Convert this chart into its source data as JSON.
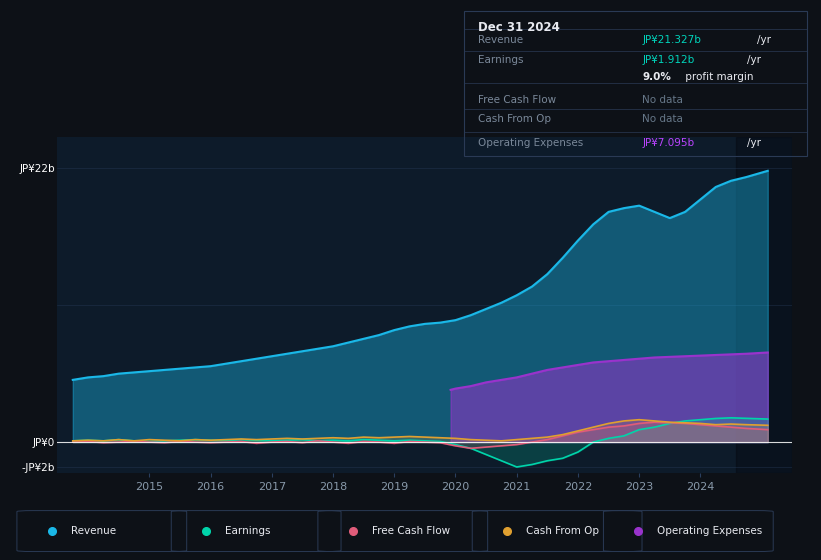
{
  "bg_color": "#0d1117",
  "plot_bg_color": "#0d1b2a",
  "grid_color": "#2a3f5f",
  "text_color": "#ffffff",
  "label_color": "#8899aa",
  "ylim": [
    -2.5,
    24.5
  ],
  "xlim_start": 2013.5,
  "xlim_end": 2025.5,
  "xtick_years": [
    2015,
    2016,
    2017,
    2018,
    2019,
    2020,
    2021,
    2022,
    2023,
    2024
  ],
  "revenue_color": "#1ab8e8",
  "earnings_color": "#00d4aa",
  "fcf_color": "#e05c7a",
  "cashfromop_color": "#e0a030",
  "opex_color": "#9933cc",
  "info_box": {
    "date": "Dec 31 2024",
    "revenue_label": "Revenue",
    "revenue_value": "JP¥21.327b",
    "earnings_label": "Earnings",
    "earnings_value": "JP¥1.912b",
    "margin_pct": "9.0%",
    "margin_text": " profit margin",
    "fcf_label": "Free Cash Flow",
    "fcf_value": "No data",
    "cashop_label": "Cash From Op",
    "cashop_value": "No data",
    "opex_label": "Operating Expenses",
    "opex_value": "JP¥7.095b"
  },
  "legend": [
    {
      "label": "Revenue",
      "color": "#1ab8e8"
    },
    {
      "label": "Earnings",
      "color": "#00d4aa"
    },
    {
      "label": "Free Cash Flow",
      "color": "#e05c7a"
    },
    {
      "label": "Cash From Op",
      "color": "#e0a030"
    },
    {
      "label": "Operating Expenses",
      "color": "#9933cc"
    }
  ],
  "revenue": {
    "x": [
      2013.75,
      2014.0,
      2014.25,
      2014.5,
      2014.75,
      2015.0,
      2015.25,
      2015.5,
      2015.75,
      2016.0,
      2016.25,
      2016.5,
      2016.75,
      2017.0,
      2017.25,
      2017.5,
      2017.75,
      2018.0,
      2018.25,
      2018.5,
      2018.75,
      2019.0,
      2019.25,
      2019.5,
      2019.75,
      2020.0,
      2020.25,
      2020.5,
      2020.75,
      2021.0,
      2021.25,
      2021.5,
      2021.75,
      2022.0,
      2022.25,
      2022.5,
      2022.75,
      2023.0,
      2023.25,
      2023.5,
      2023.75,
      2024.0,
      2024.25,
      2024.5,
      2024.75,
      2025.1
    ],
    "y": [
      5.0,
      5.2,
      5.3,
      5.5,
      5.6,
      5.7,
      5.8,
      5.9,
      6.0,
      6.1,
      6.3,
      6.5,
      6.7,
      6.9,
      7.1,
      7.3,
      7.5,
      7.7,
      8.0,
      8.3,
      8.6,
      9.0,
      9.3,
      9.5,
      9.6,
      9.8,
      10.2,
      10.7,
      11.2,
      11.8,
      12.5,
      13.5,
      14.8,
      16.2,
      17.5,
      18.5,
      18.8,
      19.0,
      18.5,
      18.0,
      18.5,
      19.5,
      20.5,
      21.0,
      21.3,
      21.8
    ]
  },
  "earnings": {
    "x": [
      2013.75,
      2014.0,
      2014.25,
      2014.5,
      2014.75,
      2015.0,
      2015.25,
      2015.5,
      2015.75,
      2016.0,
      2016.25,
      2016.5,
      2016.75,
      2017.0,
      2017.25,
      2017.5,
      2017.75,
      2018.0,
      2018.25,
      2018.5,
      2018.75,
      2019.0,
      2019.25,
      2019.5,
      2019.75,
      2020.0,
      2020.25,
      2020.5,
      2020.75,
      2021.0,
      2021.25,
      2021.5,
      2021.75,
      2022.0,
      2022.25,
      2022.5,
      2022.75,
      2023.0,
      2023.25,
      2023.5,
      2023.75,
      2024.0,
      2024.25,
      2024.5,
      2024.75,
      2025.1
    ],
    "y": [
      0.1,
      0.15,
      0.1,
      0.2,
      0.1,
      0.05,
      0.1,
      0.15,
      0.2,
      0.15,
      0.1,
      0.2,
      0.15,
      0.1,
      0.15,
      0.2,
      0.1,
      0.15,
      0.1,
      0.2,
      0.15,
      0.1,
      0.15,
      0.1,
      0.05,
      -0.2,
      -0.5,
      -1.0,
      -1.5,
      -2.0,
      -1.8,
      -1.5,
      -1.3,
      -0.8,
      0.0,
      0.3,
      0.5,
      1.0,
      1.2,
      1.5,
      1.7,
      1.8,
      1.9,
      1.95,
      1.91,
      1.85
    ]
  },
  "fcf": {
    "x": [
      2013.75,
      2014.0,
      2014.25,
      2014.5,
      2014.75,
      2015.0,
      2015.25,
      2015.5,
      2015.75,
      2016.0,
      2016.25,
      2016.5,
      2016.75,
      2017.0,
      2017.25,
      2017.5,
      2017.75,
      2018.0,
      2018.25,
      2018.5,
      2018.75,
      2019.0,
      2019.25,
      2019.5,
      2019.75,
      2020.0,
      2020.25,
      2020.5,
      2020.75,
      2021.0,
      2021.25,
      2021.5,
      2021.75,
      2022.0,
      2022.25,
      2022.5,
      2022.75,
      2023.0,
      2023.25,
      2023.5,
      2023.75,
      2024.0,
      2024.25,
      2024.5,
      2024.75,
      2025.1
    ],
    "y": [
      0.0,
      0.05,
      -0.05,
      0.0,
      0.05,
      0.0,
      -0.05,
      0.05,
      0.0,
      -0.05,
      0.0,
      0.05,
      -0.1,
      0.0,
      0.05,
      -0.05,
      0.1,
      0.0,
      -0.1,
      0.05,
      0.0,
      -0.1,
      0.05,
      0.0,
      -0.05,
      -0.3,
      -0.5,
      -0.4,
      -0.3,
      -0.2,
      0.0,
      0.2,
      0.5,
      0.8,
      1.0,
      1.2,
      1.3,
      1.5,
      1.6,
      1.55,
      1.5,
      1.4,
      1.3,
      1.2,
      1.1,
      1.0
    ]
  },
  "cashfromop": {
    "x": [
      2013.75,
      2014.0,
      2014.25,
      2014.5,
      2014.75,
      2015.0,
      2015.25,
      2015.5,
      2015.75,
      2016.0,
      2016.25,
      2016.5,
      2016.75,
      2017.0,
      2017.25,
      2017.5,
      2017.75,
      2018.0,
      2018.25,
      2018.5,
      2018.75,
      2019.0,
      2019.25,
      2019.5,
      2019.75,
      2020.0,
      2020.25,
      2020.5,
      2020.75,
      2021.0,
      2021.25,
      2021.5,
      2021.75,
      2022.0,
      2022.25,
      2022.5,
      2022.75,
      2023.0,
      2023.25,
      2023.5,
      2023.75,
      2024.0,
      2024.25,
      2024.5,
      2024.75,
      2025.1
    ],
    "y": [
      0.1,
      0.15,
      0.1,
      0.2,
      0.1,
      0.2,
      0.15,
      0.1,
      0.2,
      0.15,
      0.2,
      0.25,
      0.2,
      0.25,
      0.3,
      0.25,
      0.3,
      0.35,
      0.3,
      0.4,
      0.35,
      0.4,
      0.45,
      0.4,
      0.35,
      0.3,
      0.2,
      0.15,
      0.1,
      0.2,
      0.3,
      0.4,
      0.6,
      0.9,
      1.2,
      1.5,
      1.7,
      1.8,
      1.7,
      1.6,
      1.55,
      1.5,
      1.4,
      1.45,
      1.4,
      1.35
    ]
  },
  "opex": {
    "x": [
      2019.92,
      2020.0,
      2020.25,
      2020.5,
      2020.75,
      2021.0,
      2021.25,
      2021.5,
      2021.75,
      2022.0,
      2022.25,
      2022.5,
      2022.75,
      2023.0,
      2023.25,
      2023.5,
      2023.75,
      2024.0,
      2024.25,
      2024.5,
      2024.75,
      2025.1
    ],
    "y": [
      4.2,
      4.3,
      4.5,
      4.8,
      5.0,
      5.2,
      5.5,
      5.8,
      6.0,
      6.2,
      6.4,
      6.5,
      6.6,
      6.7,
      6.8,
      6.85,
      6.9,
      6.95,
      7.0,
      7.05,
      7.1,
      7.2
    ]
  }
}
